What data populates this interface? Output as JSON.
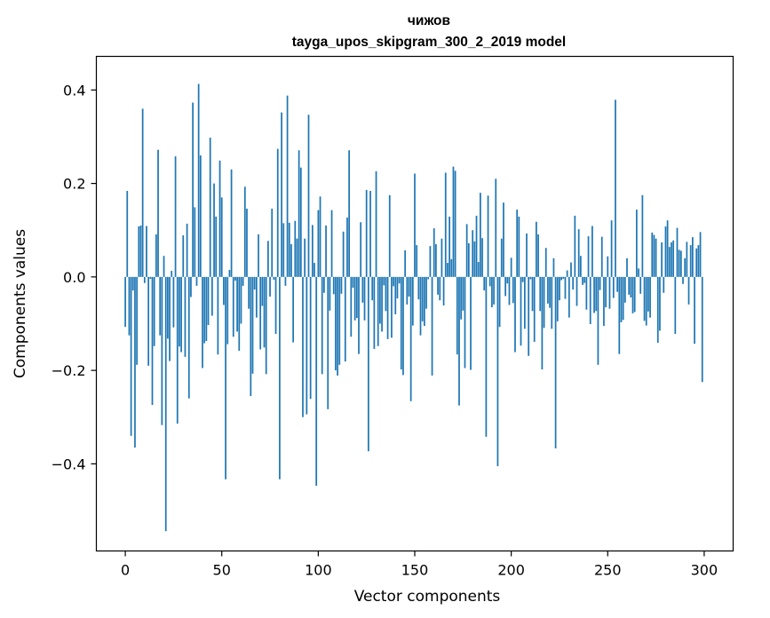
{
  "chart_data": {
    "type": "bar",
    "title_line1": "чижов",
    "title_line2": "tayga_upos_skipgram_300_2_2019 model",
    "xlabel": "Vector components",
    "ylabel": "Components values",
    "xlim": [
      -15,
      315
    ],
    "ylim": [
      -0.5864,
      0.4719
    ],
    "xticks": [
      0,
      50,
      100,
      150,
      200,
      250,
      300
    ],
    "xtick_labels": [
      "0",
      "50",
      "100",
      "150",
      "200",
      "250",
      "300"
    ],
    "yticks": [
      -0.4,
      -0.2,
      0.0,
      0.2,
      0.4
    ],
    "ytick_labels": [
      "−0.4",
      "−0.2",
      "0.0",
      "0.2",
      "0.4"
    ],
    "bar_color": "#1f77b4",
    "series": [
      {
        "name": "components",
        "values": [
          -0.107,
          0.184,
          -0.125,
          -0.34,
          -0.029,
          -0.365,
          -0.188,
          0.108,
          0.11,
          0.36,
          -0.013,
          0.109,
          -0.19,
          -0.004,
          -0.274,
          -0.148,
          0.091,
          0.272,
          -0.125,
          -0.317,
          0.045,
          -0.544,
          -0.132,
          -0.18,
          0.013,
          -0.108,
          0.258,
          -0.314,
          -0.149,
          -0.161,
          0.089,
          -0.171,
          0.114,
          -0.26,
          -0.043,
          0.373,
          0.149,
          -0.019,
          0.413,
          0.26,
          -0.195,
          -0.142,
          -0.137,
          -0.103,
          0.298,
          -0.083,
          0.2,
          0.129,
          -0.166,
          0.249,
          0.17,
          -0.06,
          -0.433,
          -0.144,
          0.015,
          0.23,
          -0.128,
          -0.008,
          -0.117,
          -0.158,
          -0.1,
          -0.019,
          0.193,
          0.146,
          -0.068,
          -0.255,
          -0.207,
          -0.027,
          -0.087,
          0.091,
          -0.155,
          -0.062,
          -0.151,
          -0.208,
          0.077,
          -0.042,
          0.146,
          -0.006,
          -0.122,
          0.274,
          -0.433,
          0.352,
          0.115,
          -0.019,
          0.388,
          0.116,
          0.07,
          -0.14,
          0.12,
          0.082,
          0.271,
          0.234,
          -0.3,
          0.082,
          -0.294,
          0.347,
          -0.261,
          0.111,
          0.03,
          -0.447,
          0.143,
          0.172,
          -0.208,
          -0.034,
          0.11,
          -0.283,
          -0.072,
          0.143,
          -0.037,
          -0.2,
          -0.211,
          -0.188,
          -0.036,
          0.097,
          -0.181,
          0.127,
          0.271,
          -0.128,
          -0.023,
          -0.093,
          -0.088,
          -0.165,
          0.117,
          -0.055,
          -0.093,
          0.186,
          -0.373,
          0.184,
          -0.05,
          -0.154,
          0.226,
          -0.148,
          -0.1,
          -0.117,
          -0.018,
          -0.073,
          -0.133,
          0.175,
          -0.13,
          -0.02,
          -0.08,
          -0.046,
          -0.014,
          -0.198,
          -0.21,
          0.057,
          -0.059,
          -0.042,
          -0.266,
          -0.104,
          0.221,
          0.068,
          -0.048,
          -0.125,
          -0.095,
          -0.105,
          -0.068,
          -0.005,
          0.066,
          -0.211,
          0.104,
          0.07,
          -0.038,
          -0.05,
          0.082,
          -0.061,
          0.223,
          0.03,
          0.129,
          0.038,
          0.236,
          0.227,
          -0.166,
          -0.275,
          -0.091,
          -0.072,
          -0.195,
          0.113,
          0.072,
          -0.199,
          0.1,
          0.076,
          0.131,
          0.032,
          0.18,
          0.083,
          -0.029,
          -0.342,
          0.174,
          -0.02,
          -0.065,
          -0.059,
          0.21,
          -0.405,
          -0.107,
          0.082,
          0.159,
          -0.041,
          -0.014,
          -0.06,
          0.041,
          -0.056,
          -0.161,
          0.144,
          0.129,
          -0.147,
          -0.011,
          -0.111,
          0.093,
          -0.169,
          -0.005,
          -0.073,
          -0.139,
          0.118,
          0.091,
          -0.073,
          -0.198,
          -0.109,
          0.062,
          -0.057,
          -0.066,
          -0.111,
          0.04,
          -0.367,
          -0.095,
          -0.05,
          -0.007,
          -0.004,
          -0.047,
          0.014,
          -0.087,
          0.031,
          -0.027,
          0.131,
          -0.062,
          0.102,
          0.045,
          -0.017,
          -0.013,
          -0.07,
          0.087,
          -0.101,
          0.109,
          -0.077,
          -0.073,
          -0.188,
          -0.028,
          0.086,
          -0.105,
          -0.065,
          0.044,
          -0.068,
          0.121,
          -0.045,
          0.379,
          -0.032,
          -0.165,
          -0.097,
          -0.092,
          -0.055,
          0.04,
          -0.038,
          -0.044,
          -0.078,
          -0.075,
          0.144,
          0.018,
          -0.036,
          0.175,
          -0.094,
          -0.104,
          -0.074,
          -0.087,
          0.095,
          0.09,
          0.082,
          -0.141,
          -0.115,
          0.074,
          -0.034,
          0.108,
          0.121,
          0.064,
          0.074,
          0.078,
          -0.122,
          0.105,
          0.058,
          0.056,
          -0.015,
          0.04,
          0.075,
          -0.059,
          0.068,
          0.085,
          -0.143,
          0.061,
          0.068,
          0.096,
          -0.225
        ]
      }
    ]
  }
}
